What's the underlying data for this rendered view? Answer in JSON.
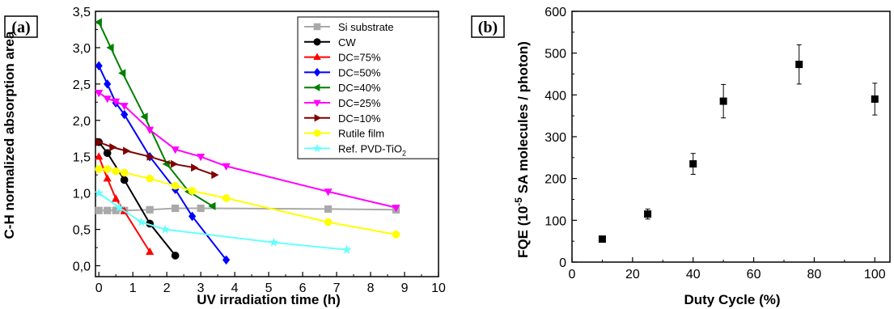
{
  "chart_data": [
    {
      "type": "line",
      "panel_label": "(a)",
      "xlabel": "UV irradiation time (h)",
      "ylabel": "C-H normalized absorption area",
      "xlim": [
        -0.1,
        10
      ],
      "ylim": [
        -0.15,
        3.5
      ],
      "xticks": [
        "0",
        "1",
        "2",
        "3",
        "4",
        "5",
        "6",
        "7",
        "8",
        "9",
        "10"
      ],
      "yticks": [
        "0,0",
        "0,5",
        "1,0",
        "1,5",
        "2,0",
        "2,5",
        "3,0",
        "3,5"
      ],
      "legend_position": "top-right",
      "series": [
        {
          "name": "Si substrate",
          "color": "#a9a9a9",
          "marker": "square",
          "x": [
            0,
            0.25,
            0.5,
            0.75,
            1.5,
            2.25,
            3.0,
            6.75,
            8.75
          ],
          "y": [
            0.76,
            0.76,
            0.76,
            0.76,
            0.77,
            0.79,
            0.79,
            0.78,
            0.77
          ]
        },
        {
          "name": "CW",
          "color": "#000000",
          "marker": "circle",
          "x": [
            0,
            0.25,
            0.75,
            1.5,
            2.25
          ],
          "y": [
            1.7,
            1.55,
            1.18,
            0.58,
            0.14
          ]
        },
        {
          "name": "DC=75%",
          "color": "#ff0000",
          "marker": "triangle-up",
          "x": [
            0,
            0.25,
            0.5,
            0.75,
            1.5
          ],
          "y": [
            1.5,
            1.2,
            0.92,
            0.75,
            0.19
          ]
        },
        {
          "name": "DC=50%",
          "color": "#0000ff",
          "marker": "diamond",
          "x": [
            0,
            0.25,
            0.5,
            0.75,
            1.5,
            2.25,
            2.75,
            3.75
          ],
          "y": [
            2.75,
            2.5,
            2.24,
            2.08,
            1.5,
            1.05,
            0.68,
            0.08
          ]
        },
        {
          "name": "DC=40%",
          "color": "#008000",
          "marker": "triangle-left",
          "x": [
            0,
            0.35,
            0.7,
            1.35,
            2.0,
            2.65,
            3.35
          ],
          "y": [
            3.35,
            3.0,
            2.65,
            2.05,
            1.4,
            1.02,
            0.82
          ]
        },
        {
          "name": "DC=25%",
          "color": "#ff00ff",
          "marker": "triangle-down",
          "x": [
            0,
            0.25,
            0.5,
            0.75,
            1.5,
            2.25,
            3.0,
            3.75,
            6.75,
            8.75
          ],
          "y": [
            2.38,
            2.3,
            2.26,
            2.2,
            1.87,
            1.6,
            1.5,
            1.37,
            1.02,
            0.8
          ]
        },
        {
          "name": "DC=10%",
          "color": "#800000",
          "marker": "triangle-right",
          "x": [
            0,
            0.4,
            0.8,
            1.5,
            2.2,
            2.8,
            3.4
          ],
          "y": [
            1.7,
            1.63,
            1.58,
            1.5,
            1.4,
            1.35,
            1.25
          ]
        },
        {
          "name": "Rutile film",
          "color": "#ffff00",
          "marker": "circle",
          "x": [
            0,
            0.25,
            0.5,
            0.75,
            1.5,
            2.25,
            2.75,
            3.75,
            6.75,
            8.75
          ],
          "y": [
            1.33,
            1.33,
            1.3,
            1.28,
            1.2,
            1.1,
            1.03,
            0.93,
            0.6,
            0.43
          ]
        },
        {
          "name": "Ref. PVD-TiO2",
          "color": "#66ffff",
          "marker": "star",
          "x": [
            0,
            0.6,
            1.25,
            1.95,
            5.15,
            7.3
          ],
          "y": [
            1.0,
            0.8,
            0.6,
            0.5,
            0.32,
            0.22
          ]
        }
      ]
    },
    {
      "type": "scatter",
      "panel_label": "(b)",
      "xlabel": "Duty Cycle (%)",
      "ylabel_parts": [
        "FQE (10",
        "-5",
        " SA molecules / photon)"
      ],
      "xlim": [
        0,
        105
      ],
      "ylim": [
        0,
        600
      ],
      "xticks": [
        "0",
        "20",
        "40",
        "60",
        "80",
        "100"
      ],
      "yticks": [
        "0",
        "100",
        "200",
        "300",
        "400",
        "500",
        "600"
      ],
      "series": [
        {
          "marker": "square",
          "color": "#000000",
          "x": [
            10,
            25,
            40,
            50,
            75,
            100
          ],
          "y": [
            55,
            115,
            235,
            385,
            473,
            390
          ],
          "error": [
            5,
            12,
            25,
            40,
            47,
            38
          ]
        }
      ]
    }
  ]
}
